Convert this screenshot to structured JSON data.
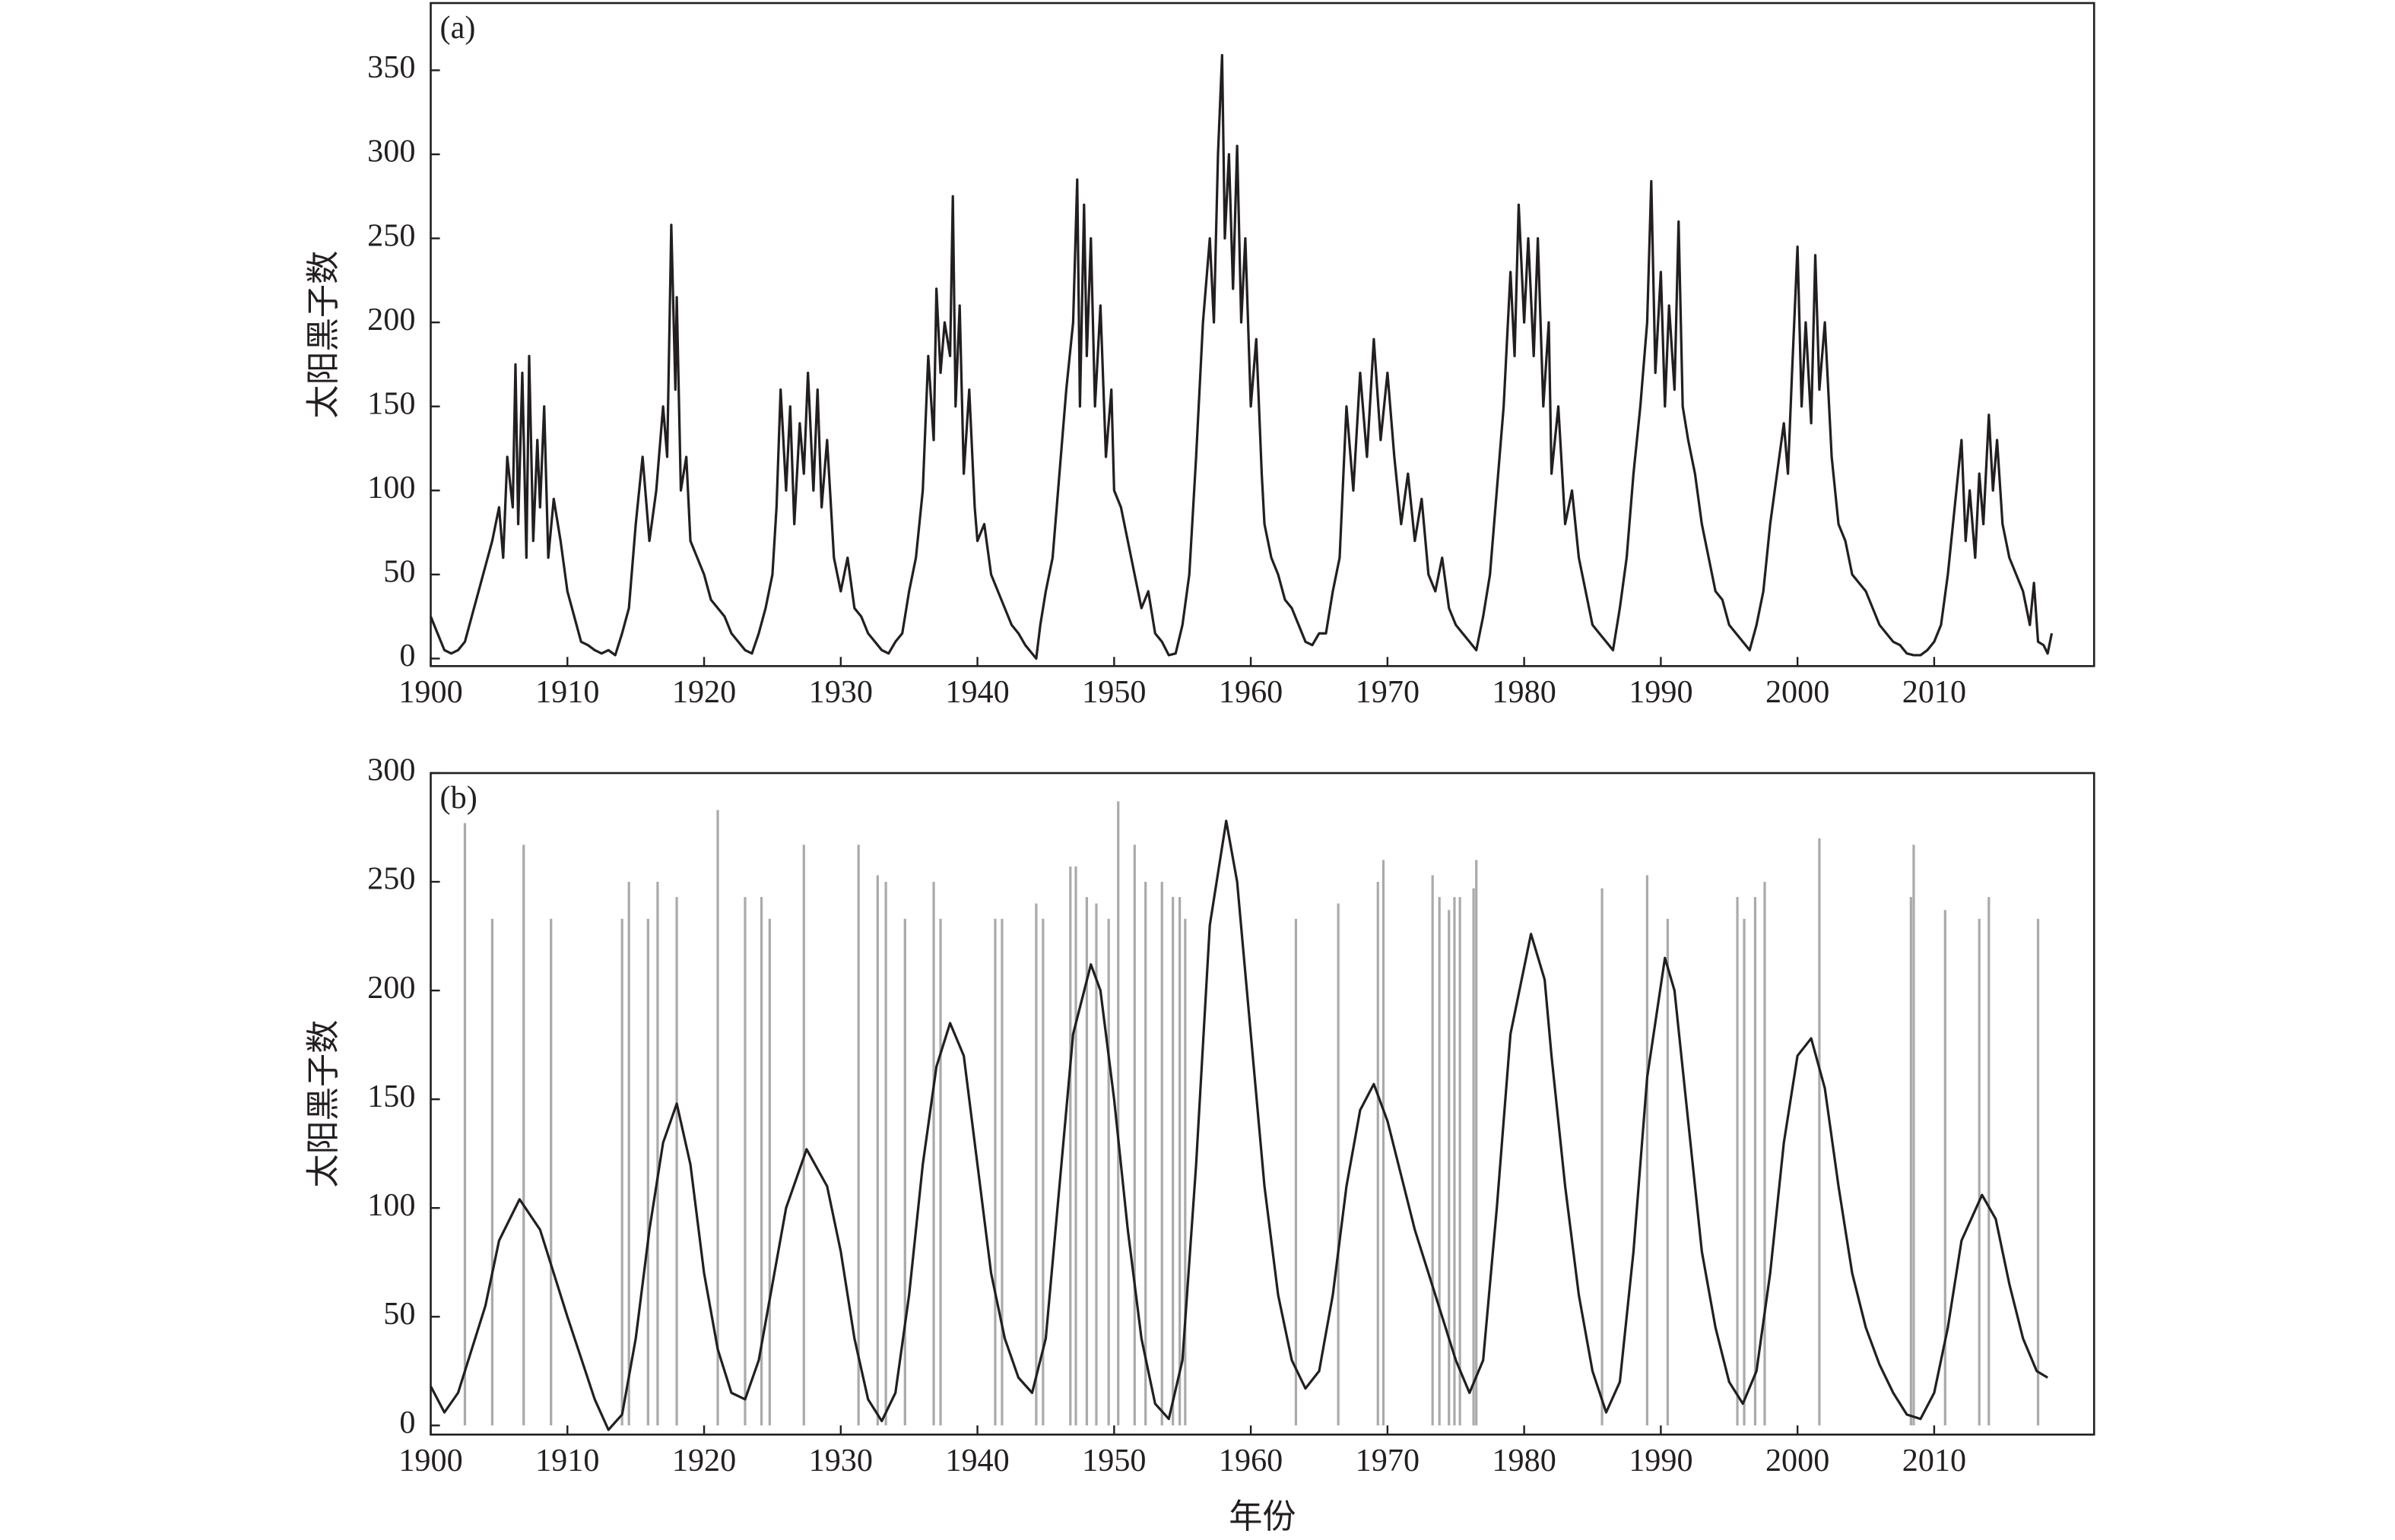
{
  "chart_data": [
    {
      "type": "line",
      "label": "(a)",
      "ylabel": "太阳黑子数",
      "xlim": [
        1900,
        2021.7
      ],
      "ylim": [
        -4.5,
        390
      ],
      "xticks": [
        1900,
        1910,
        1920,
        1930,
        1940,
        1950,
        1960,
        1970,
        1980,
        1990,
        2000,
        2010
      ],
      "yticks": [
        0,
        50,
        100,
        150,
        200,
        250,
        300,
        350
      ],
      "series": [
        {
          "color": "#231f20",
          "kind": "line",
          "x": [
            1900,
            1900.5,
            1901,
            1901.5,
            1902,
            1902.5,
            1903,
            1903.5,
            1904,
            1904.5,
            1905,
            1905.3,
            1905.6,
            1906,
            1906.2,
            1906.4,
            1906.7,
            1907,
            1907.2,
            1907.5,
            1907.8,
            1908,
            1908.3,
            1908.6,
            1909,
            1909.5,
            1910,
            1910.5,
            1911,
            1911.5,
            1912,
            1912.5,
            1913,
            1913.5,
            1914,
            1914.5,
            1915,
            1915.5,
            1916,
            1916.5,
            1917,
            1917.3,
            1917.6,
            1917.9,
            1918,
            1918.3,
            1918.7,
            1919,
            1919.5,
            1920,
            1920.5,
            1921,
            1921.5,
            1922,
            1922.5,
            1923,
            1923.5,
            1924,
            1924.5,
            1925,
            1925.3,
            1925.6,
            1926,
            1926.3,
            1926.6,
            1927,
            1927.3,
            1927.6,
            1928,
            1928.3,
            1928.6,
            1929,
            1929.5,
            1930,
            1930.5,
            1931,
            1931.5,
            1932,
            1932.5,
            1933,
            1933.5,
            1934,
            1934.5,
            1935,
            1935.5,
            1936,
            1936.4,
            1936.8,
            1937,
            1937.3,
            1937.6,
            1938,
            1938.2,
            1938.4,
            1938.7,
            1939,
            1939.4,
            1939.8,
            1940,
            1940.5,
            1941,
            1941.5,
            1942,
            1942.5,
            1943,
            1943.5,
            1944,
            1944.3,
            1944.6,
            1945,
            1945.5,
            1946,
            1946.5,
            1947,
            1947.3,
            1947.5,
            1947.8,
            1948,
            1948.3,
            1948.6,
            1949,
            1949.4,
            1949.8,
            1950,
            1950.5,
            1951,
            1951.5,
            1952,
            1952.5,
            1953,
            1953.5,
            1954,
            1954.5,
            1955,
            1955.5,
            1956,
            1956.5,
            1957,
            1957.3,
            1957.6,
            1957.9,
            1958.1,
            1958.4,
            1958.7,
            1959,
            1959.3,
            1959.6,
            1960,
            1960.4,
            1960.8,
            1961,
            1961.5,
            1962,
            1962.5,
            1963,
            1963.5,
            1964,
            1964.5,
            1965,
            1965.5,
            1966,
            1966.5,
            1967,
            1967.5,
            1968,
            1968.5,
            1969,
            1969.5,
            1970,
            1970.5,
            1971,
            1971.5,
            1972,
            1972.5,
            1973,
            1973.5,
            1974,
            1974.5,
            1975,
            1975.5,
            1976,
            1976.5,
            1977,
            1977.5,
            1978,
            1978.5,
            1979,
            1979.3,
            1979.6,
            1980,
            1980.3,
            1980.7,
            1981,
            1981.4,
            1981.8,
            1982,
            1982.5,
            1983,
            1983.5,
            1984,
            1984.5,
            1985,
            1985.5,
            1986,
            1986.5,
            1987,
            1987.5,
            1988,
            1988.5,
            1989,
            1989.3,
            1989.6,
            1990,
            1990.3,
            1990.6,
            1991,
            1991.3,
            1991.6,
            1992,
            1992.5,
            1993,
            1993.5,
            1994,
            1994.5,
            1995,
            1995.5,
            1996,
            1996.5,
            1997,
            1997.5,
            1998,
            1998.5,
            1999,
            1999.3,
            1999.6,
            2000,
            2000.3,
            2000.6,
            2001,
            2001.3,
            2001.6,
            2002,
            2002.5,
            2003,
            2003.5,
            2004,
            2004.5,
            2005,
            2005.5,
            2006,
            2006.5,
            2007,
            2007.5,
            2008,
            2008.5,
            2009,
            2009.5,
            2010,
            2010.5,
            2011,
            2011.5,
            2012,
            2012.3,
            2012.6,
            2013,
            2013.3,
            2013.6,
            2014,
            2014.3,
            2014.6,
            2015,
            2015.5,
            2016,
            2016.5,
            2017,
            2017.3,
            2017.6,
            2018,
            2018.3,
            2018.6
          ],
          "values": [
            25,
            15,
            5,
            3,
            5,
            10,
            25,
            40,
            55,
            70,
            90,
            60,
            120,
            90,
            175,
            80,
            170,
            60,
            180,
            70,
            130,
            90,
            150,
            60,
            95,
            70,
            40,
            25,
            10,
            8,
            5,
            3,
            5,
            2,
            15,
            30,
            80,
            120,
            70,
            100,
            150,
            120,
            258,
            160,
            215,
            100,
            120,
            70,
            60,
            50,
            35,
            30,
            25,
            15,
            10,
            5,
            3,
            15,
            30,
            50,
            90,
            160,
            100,
            150,
            80,
            140,
            110,
            170,
            100,
            160,
            90,
            130,
            60,
            40,
            60,
            30,
            25,
            15,
            10,
            5,
            3,
            10,
            15,
            40,
            60,
            100,
            180,
            130,
            220,
            170,
            200,
            180,
            275,
            150,
            210,
            110,
            160,
            90,
            70,
            80,
            50,
            40,
            30,
            20,
            15,
            8,
            3,
            0,
            20,
            40,
            60,
            110,
            160,
            200,
            285,
            150,
            270,
            180,
            250,
            150,
            210,
            120,
            160,
            100,
            90,
            70,
            50,
            30,
            40,
            15,
            10,
            2,
            3,
            20,
            50,
            120,
            200,
            250,
            200,
            300,
            359,
            250,
            300,
            220,
            305,
            200,
            250,
            150,
            190,
            110,
            80,
            60,
            50,
            35,
            30,
            20,
            10,
            8,
            15,
            15,
            40,
            60,
            150,
            100,
            170,
            120,
            190,
            130,
            170,
            120,
            80,
            110,
            70,
            95,
            50,
            40,
            60,
            30,
            20,
            15,
            10,
            5,
            25,
            50,
            100,
            150,
            230,
            180,
            270,
            200,
            250,
            180,
            250,
            150,
            200,
            110,
            150,
            80,
            100,
            60,
            40,
            20,
            15,
            10,
            5,
            30,
            60,
            110,
            150,
            200,
            284,
            170,
            230,
            150,
            210,
            160,
            260,
            150,
            130,
            110,
            80,
            60,
            40,
            35,
            20,
            15,
            10,
            5,
            20,
            40,
            80,
            110,
            140,
            110,
            170,
            245,
            150,
            200,
            140,
            240,
            160,
            200,
            120,
            80,
            70,
            50,
            45,
            40,
            30,
            20,
            15,
            10,
            8,
            3,
            2,
            2,
            5,
            10,
            20,
            50,
            90,
            130,
            70,
            100,
            60,
            110,
            80,
            145,
            100,
            130,
            80,
            60,
            50,
            40,
            20,
            45,
            10,
            8,
            3,
            15
          ]
        }
      ]
    },
    {
      "type": "line",
      "label": "(b)",
      "ylabel": "太阳黑子数",
      "xlabel": "年份",
      "xlim": [
        1900,
        2021.7
      ],
      "ylim": [
        -4.2,
        300
      ],
      "xticks": [
        1900,
        1910,
        1920,
        1930,
        1940,
        1950,
        1960,
        1970,
        1980,
        1990,
        2000,
        2010
      ],
      "yticks": [
        0,
        50,
        100,
        150,
        200,
        250,
        300
      ],
      "series": [
        {
          "color": "#aaaaaa",
          "kind": "stem",
          "x": [
            1902.5,
            1904.5,
            1906.8,
            1908.8,
            1914,
            1914.5,
            1915.9,
            1916.6,
            1918,
            1921,
            1923,
            1924.2,
            1924.8,
            1927.3,
            1931.3,
            1932.7,
            1933.3,
            1934.7,
            1936.8,
            1937.3,
            1941.3,
            1941.8,
            1944.3,
            1944.8,
            1946.8,
            1947.2,
            1948,
            1948.7,
            1949.6,
            1950.3,
            1951.5,
            1952.3,
            1953.5,
            1954.3,
            1954.8,
            1955.2,
            1963.3,
            1966.4,
            1969.3,
            1969.7,
            1973.3,
            1973.8,
            1974.5,
            1974.9,
            1975.3,
            1976.3,
            1976.5,
            1985.7,
            1989,
            1990.5,
            1995.6,
            1996.1,
            1996.9,
            1997.6,
            2001.6,
            2008.3,
            2008.5,
            2010.8,
            2013.3,
            2014,
            2017.6
          ],
          "values": [
            277,
            233,
            267,
            233,
            233,
            250,
            233,
            250,
            243,
            283,
            243,
            243,
            233,
            267,
            267,
            253,
            250,
            233,
            250,
            233,
            233,
            233,
            240,
            233,
            257,
            257,
            243,
            240,
            233,
            287,
            267,
            250,
            250,
            243,
            243,
            233,
            233,
            240,
            250,
            260,
            253,
            243,
            237,
            243,
            243,
            247,
            260,
            247,
            253,
            233,
            243,
            233,
            243,
            250,
            270,
            243,
            267,
            237,
            233,
            243,
            233
          ]
        },
        {
          "color": "#231f20",
          "kind": "line",
          "x": [
            1900,
            1901,
            1902,
            1904,
            1905,
            1906.5,
            1908,
            1910,
            1912,
            1913,
            1914,
            1915,
            1916,
            1917,
            1918,
            1919,
            1920,
            1921,
            1922,
            1923,
            1924,
            1925,
            1926,
            1927.5,
            1929,
            1930,
            1931,
            1932,
            1933,
            1934,
            1935,
            1936,
            1937,
            1938,
            1939,
            1940,
            1941,
            1942,
            1943,
            1944,
            1945,
            1946,
            1947,
            1948.3,
            1949,
            1950,
            1951,
            1952,
            1953,
            1954,
            1955,
            1956,
            1957,
            1958.2,
            1959,
            1960,
            1961,
            1962,
            1963,
            1964,
            1965,
            1966,
            1967,
            1968,
            1969,
            1970,
            1971,
            1972,
            1973,
            1974,
            1975,
            1976,
            1977,
            1978,
            1979,
            1980.5,
            1981.5,
            1982,
            1983,
            1984,
            1985,
            1986,
            1987,
            1988,
            1989,
            1990.3,
            1991,
            1992,
            1993,
            1994,
            1995,
            1996,
            1997,
            1998,
            1999,
            2000,
            2001,
            2002,
            2003,
            2004,
            2005,
            2006,
            2007,
            2008,
            2009,
            2010,
            2011,
            2012,
            2013.5,
            2014.5,
            2015.5,
            2016.5,
            2017.5,
            2018.3
          ],
          "values": [
            18,
            6,
            15,
            55,
            85,
            104,
            90,
            50,
            12,
            -2,
            5,
            40,
            90,
            130,
            148,
            120,
            70,
            35,
            15,
            12,
            30,
            65,
            100,
            127,
            110,
            80,
            40,
            12,
            2,
            15,
            60,
            120,
            165,
            185,
            170,
            120,
            70,
            40,
            22,
            15,
            40,
            110,
            180,
            212,
            200,
            150,
            90,
            40,
            10,
            3,
            30,
            120,
            230,
            278,
            250,
            180,
            110,
            60,
            30,
            17,
            25,
            60,
            110,
            145,
            157,
            140,
            115,
            90,
            70,
            50,
            30,
            15,
            30,
            100,
            180,
            226,
            205,
            170,
            110,
            60,
            25,
            6,
            20,
            80,
            160,
            215,
            200,
            140,
            80,
            45,
            20,
            10,
            25,
            70,
            130,
            170,
            178,
            155,
            110,
            70,
            45,
            28,
            15,
            5,
            3,
            15,
            45,
            85,
            106,
            95,
            65,
            40,
            25,
            22
          ]
        }
      ]
    }
  ]
}
